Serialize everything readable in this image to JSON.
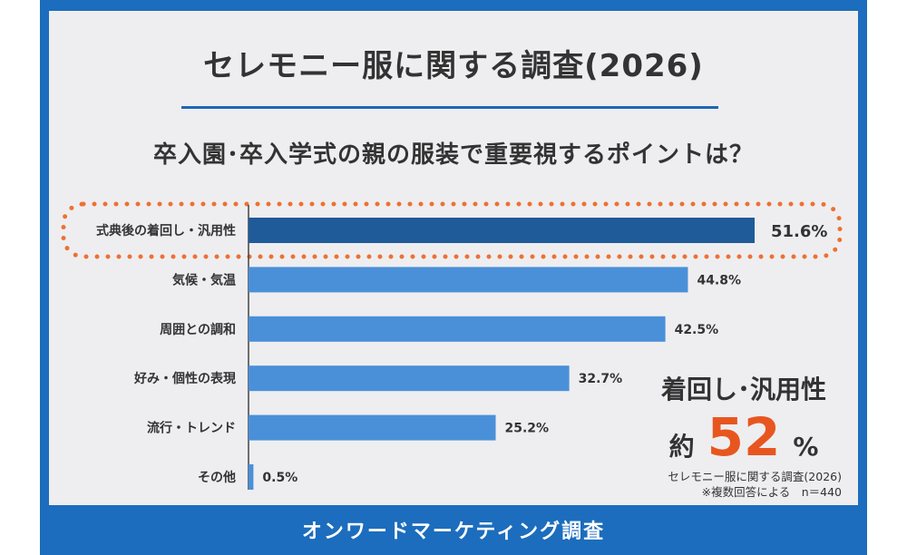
{
  "main_title": "セレモニー服に関する調査(2026)",
  "subtitle": "卒入園･卒入学式の親の服装で重要視するポイントは？",
  "callout": {
    "heading": "着回し･汎用性",
    "prefix": "約",
    "number": "52",
    "suffix": "%"
  },
  "notes": {
    "line1": "セレモニー服に関する調査(2026)",
    "line2": "※複数回答による　n＝440"
  },
  "footer": "オンワードマーケティング調査",
  "colors": {
    "frame_blue": "#1c6dbd",
    "bar_blue": "#4a90d9",
    "bar_highlight": "#1e5b98",
    "dots_orange": "#ee7032",
    "accent_orange": "#e8561f"
  },
  "chart_data": {
    "type": "bar",
    "orientation": "horizontal",
    "title": "卒入園･卒入学式の親の服装で重要視するポイントは？",
    "categories": [
      "式典後の着回し・汎用性",
      "気候・気温",
      "周囲との調和",
      "好み・個性の表現",
      "流行・トレンド",
      "その他"
    ],
    "values": [
      51.6,
      44.8,
      42.5,
      32.7,
      25.2,
      0.5
    ],
    "labels": [
      "51.6%",
      "44.8%",
      "42.5%",
      "32.7%",
      "25.2%",
      "0.5%"
    ],
    "highlight_index": 0,
    "xlim": [
      0,
      60
    ],
    "grid": false,
    "legend": "none"
  }
}
